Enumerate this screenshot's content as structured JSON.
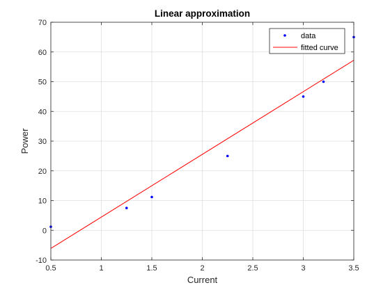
{
  "chart_data": {
    "type": "scatter",
    "title": "Linear approximation",
    "xlabel": "Current",
    "ylabel": "Power",
    "xlim": [
      0.5,
      3.5
    ],
    "ylim": [
      -10,
      70
    ],
    "xticks": [
      0.5,
      1,
      1.5,
      2,
      2.5,
      3,
      3.5
    ],
    "xtick_labels": [
      "0.5",
      "1",
      "1.5",
      "2",
      "2.5",
      "3",
      "3.5"
    ],
    "yticks": [
      -10,
      0,
      10,
      20,
      30,
      40,
      50,
      60,
      70
    ],
    "ytick_labels": [
      "-10",
      "0",
      "10",
      "20",
      "30",
      "40",
      "50",
      "60",
      "70"
    ],
    "grid": true,
    "legend_position": "top-right",
    "series": [
      {
        "name": "data",
        "kind": "markers",
        "color": "#0000ff",
        "x": [
          0.5,
          1.25,
          1.5,
          2.25,
          3.0,
          3.2,
          3.5
        ],
        "y": [
          1.2,
          7.5,
          11.2,
          25.0,
          45.0,
          50.0,
          65.0
        ]
      },
      {
        "name": "fitted curve",
        "kind": "line",
        "color": "#ff0000",
        "x": [
          0.5,
          3.5
        ],
        "y": [
          -6.1,
          57.2
        ]
      }
    ]
  }
}
